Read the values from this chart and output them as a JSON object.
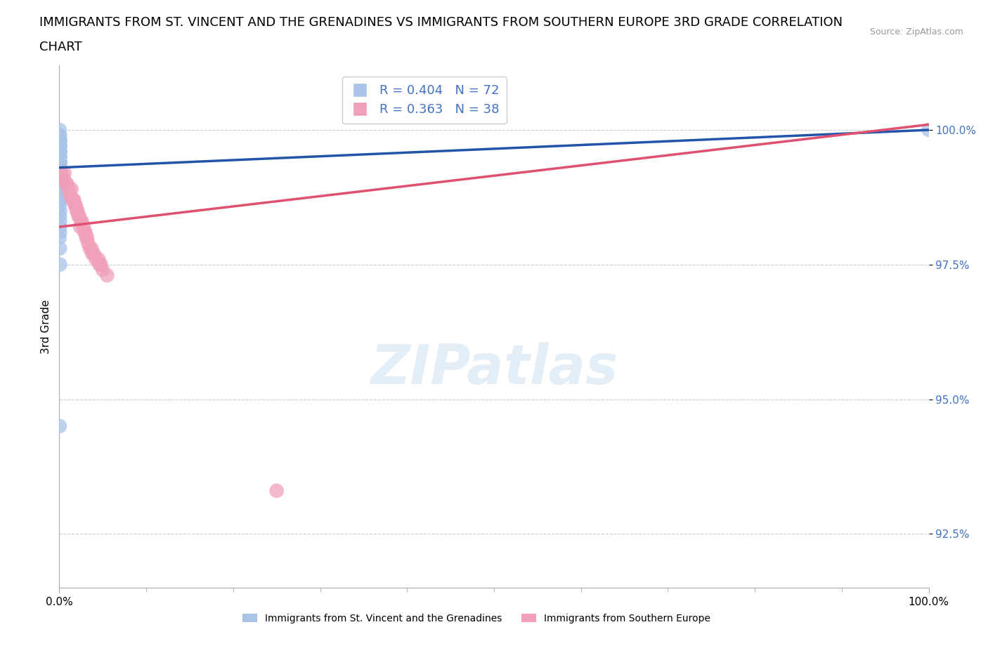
{
  "title_line1": "IMMIGRANTS FROM ST. VINCENT AND THE GRENADINES VS IMMIGRANTS FROM SOUTHERN EUROPE 3RD GRADE CORRELATION",
  "title_line2": "CHART",
  "source_text": "Source: ZipAtlas.com",
  "ylabel": "3rd Grade",
  "x_label_bottom_left": "0.0%",
  "x_label_bottom_right": "100.0%",
  "y_ticks": [
    92.5,
    95.0,
    97.5,
    100.0
  ],
  "y_tick_labels": [
    "92.5%",
    "95.0%",
    "97.5%",
    "100.0%"
  ],
  "xlim": [
    0.0,
    100.0
  ],
  "ylim": [
    91.5,
    101.2
  ],
  "blue_color": "#aac4e8",
  "pink_color": "#f0a0b8",
  "blue_line_color": "#2255aa",
  "pink_line_color": "#e05070",
  "bottom_legend": [
    {
      "label": "Immigrants from St. Vincent and the Grenadines",
      "color": "#aac4e8"
    },
    {
      "label": "Immigrants from Southern Europe",
      "color": "#f0a0b8"
    }
  ],
  "r_blue": 0.404,
  "n_blue": 72,
  "r_pink": 0.363,
  "n_pink": 38,
  "blue_scatter_x": [
    0.05,
    0.08,
    0.1,
    0.12,
    0.06,
    0.07,
    0.09,
    0.11,
    0.04,
    0.06,
    0.08,
    0.1,
    0.05,
    0.07,
    0.09,
    0.06,
    0.08,
    0.11,
    0.04,
    0.07,
    0.09,
    0.06,
    0.08,
    0.05,
    0.1,
    0.07,
    0.09,
    0.06,
    0.08,
    0.05,
    0.04,
    0.07,
    0.09,
    0.06,
    0.08,
    0.1,
    0.05,
    0.07,
    0.09,
    0.06,
    0.08,
    0.04,
    0.1,
    0.07,
    0.05,
    0.09,
    0.06,
    0.08,
    0.11,
    0.04,
    0.07,
    0.09,
    0.06,
    0.08,
    0.05,
    0.1,
    0.07,
    0.09,
    0.06,
    0.04,
    0.08,
    0.05,
    0.1,
    0.07,
    0.09,
    0.06,
    0.08,
    0.04,
    0.07,
    0.09,
    0.05,
    100.0
  ],
  "blue_scatter_y": [
    99.9,
    99.8,
    99.7,
    99.6,
    99.5,
    99.4,
    99.3,
    99.2,
    100.0,
    99.9,
    99.8,
    99.7,
    99.6,
    99.5,
    99.4,
    99.3,
    99.2,
    99.1,
    99.0,
    98.9,
    99.8,
    99.7,
    99.6,
    99.5,
    99.4,
    99.3,
    99.2,
    99.1,
    99.0,
    98.9,
    99.7,
    99.6,
    99.5,
    99.4,
    99.3,
    99.2,
    99.1,
    99.0,
    98.9,
    98.8,
    99.5,
    99.4,
    99.3,
    99.2,
    99.1,
    99.0,
    98.9,
    98.8,
    98.7,
    99.3,
    99.2,
    99.1,
    99.0,
    98.9,
    98.8,
    98.7,
    99.1,
    99.0,
    98.9,
    98.8,
    98.7,
    98.6,
    98.5,
    98.4,
    98.3,
    98.2,
    98.1,
    98.0,
    97.8,
    97.5,
    94.5,
    100.0
  ],
  "pink_scatter_x": [
    0.3,
    0.8,
    1.5,
    2.2,
    3.0,
    0.5,
    4.5,
    1.2,
    2.8,
    1.8,
    3.5,
    2.0,
    0.9,
    4.0,
    2.5,
    1.4,
    5.5,
    3.2,
    0.6,
    2.9,
    1.1,
    4.8,
    1.9,
    3.8,
    1.6,
    2.6,
    3.3,
    0.4,
    3.7,
    2.3,
    5.0,
    4.2,
    1.7,
    2.1,
    3.1,
    4.6,
    2.4,
    25.0
  ],
  "pink_scatter_y": [
    99.2,
    99.0,
    98.7,
    98.4,
    98.1,
    99.1,
    97.6,
    98.8,
    98.2,
    98.6,
    97.8,
    98.5,
    99.0,
    97.7,
    98.3,
    98.9,
    97.3,
    98.0,
    99.2,
    98.1,
    98.9,
    97.5,
    98.6,
    97.7,
    98.7,
    98.3,
    97.9,
    99.1,
    97.8,
    98.4,
    97.4,
    97.6,
    98.7,
    98.5,
    98.0,
    97.5,
    98.2,
    93.3
  ],
  "blue_trendline_x": [
    0.0,
    100.0
  ],
  "blue_trendline_y": [
    99.3,
    100.0
  ],
  "pink_trendline_x": [
    0.0,
    100.0
  ],
  "pink_trendline_y": [
    98.2,
    100.1
  ],
  "watermark": "ZIPatlas",
  "title_fontsize": 13,
  "axis_fontsize": 11,
  "tick_fontsize": 11
}
